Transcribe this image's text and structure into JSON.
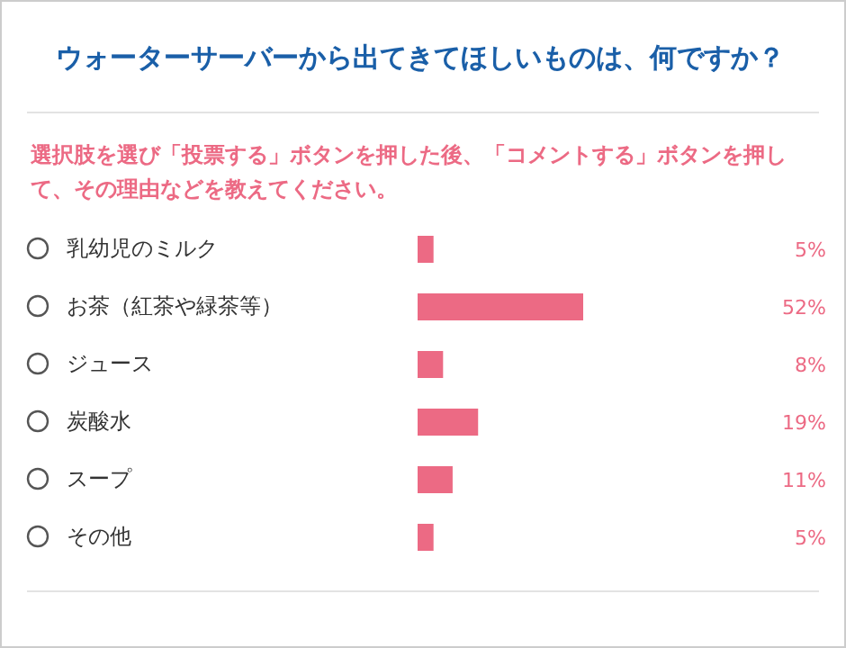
{
  "chart_data": {
    "type": "bar",
    "orientation": "horizontal",
    "title": "ウォーターサーバーから出てきてほしいものは、何ですか？",
    "subtitle": "選択肢を選び「投票する」ボタンを押した後、「コメントする」ボタンを押して、その理由などを教えてください。",
    "categories": [
      "乳幼児のミルク",
      "お茶（紅茶や緑茶等）",
      "ジュース",
      "炭酸水",
      "スープ",
      "その他"
    ],
    "values": [
      5,
      52,
      8,
      19,
      11,
      5
    ],
    "value_labels": [
      "5%",
      "52%",
      "8%",
      "19%",
      "11%",
      "5%"
    ],
    "color": "#ec6a84",
    "grid": false,
    "legend": false
  }
}
